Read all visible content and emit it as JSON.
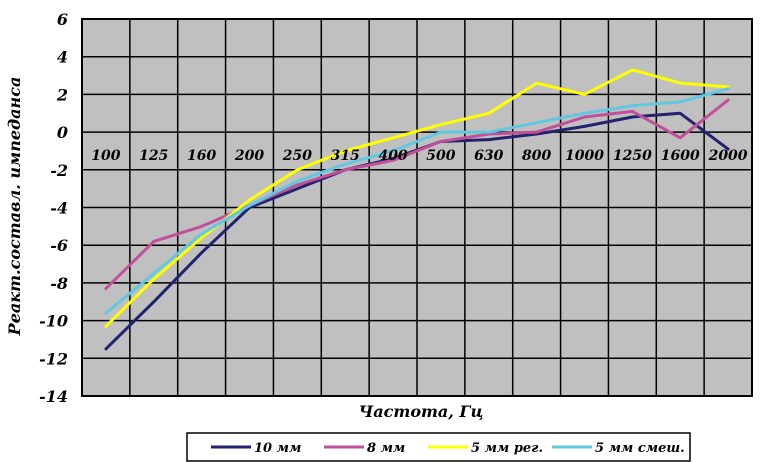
{
  "chart_data": {
    "type": "line",
    "title": "",
    "xlabel": "Частота, Гц",
    "ylabel": "Реакт.составл. импеданса",
    "categories": [
      "100",
      "125",
      "160",
      "200",
      "250",
      "315",
      "400",
      "500",
      "630",
      "800",
      "1000",
      "1250",
      "1600",
      "2000"
    ],
    "ylim": [
      -14,
      6
    ],
    "yticks": [
      "6",
      "4",
      "2",
      "0",
      "-2",
      "-4",
      "-6",
      "-8",
      "-10",
      "-12",
      "-14"
    ],
    "grid": true,
    "legend_position": "bottom",
    "series": [
      {
        "name": "10 мм",
        "color": "#22226e",
        "values": [
          -11.5,
          -9.0,
          -6.4,
          -4.0,
          -3.0,
          -2.0,
          -1.4,
          -0.5,
          -0.4,
          -0.1,
          0.3,
          0.8,
          1.0,
          -0.9
        ]
      },
      {
        "name": "8 мм",
        "color": "#c0509a",
        "values": [
          -8.3,
          -5.8,
          -5.0,
          -3.9,
          -2.8,
          -2.0,
          -1.5,
          -0.5,
          -0.1,
          0.0,
          0.8,
          1.1,
          -0.3,
          1.7
        ]
      },
      {
        "name": "5 мм рег.",
        "color": "#ffff00",
        "values": [
          -10.3,
          -7.8,
          -5.6,
          -3.6,
          -2.0,
          -1.0,
          -0.3,
          0.4,
          1.0,
          2.6,
          2.0,
          3.3,
          2.6,
          2.4
        ]
      },
      {
        "name": "5 мм смеш.",
        "color": "#60c8e0",
        "values": [
          -9.6,
          -7.5,
          -5.4,
          -3.9,
          -2.6,
          -1.7,
          -1.0,
          0.0,
          0.0,
          0.5,
          1.0,
          1.4,
          1.6,
          2.3
        ]
      }
    ]
  }
}
